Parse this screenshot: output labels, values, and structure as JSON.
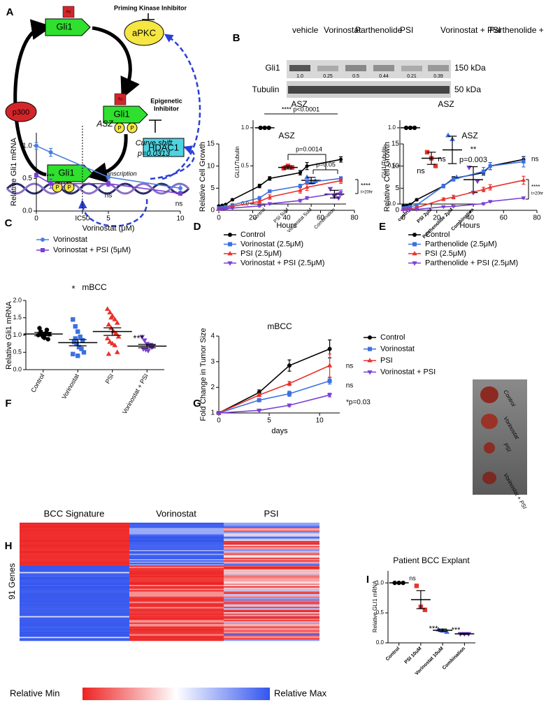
{
  "panels": [
    "A",
    "B",
    "C",
    "D",
    "E",
    "F",
    "G",
    "H",
    "I"
  ],
  "diagram": {
    "gli1": "Gli1",
    "ac": "Ac",
    "p": "P",
    "apkc": "aPKC",
    "priming": "Priming Kinase Inhibitor",
    "p300": "p300",
    "epigenetic": [
      "Epigenetic",
      "Inhibitor"
    ],
    "hdac1": "HDAC1",
    "transcription": "Transcription"
  },
  "blot": {
    "lanes": [
      "vehicle",
      "Vorinostat",
      "Parthenolide",
      "PSI",
      "Vorinostat + PSI",
      "Parthenolide + PSI"
    ],
    "rows": [
      "Gli1",
      "Tubulin"
    ],
    "sizes": [
      "150 kDa",
      "50 kDa"
    ],
    "quant": [
      "1.0",
      "0.25",
      "0.5",
      "0.44",
      "0.21",
      "0.39"
    ]
  },
  "heatmap": {
    "columns": [
      "BCC Signature",
      "Vorinostat",
      "PSI"
    ],
    "row_label": "91 Genes",
    "scale": [
      "Relative Min",
      "Relative Max"
    ]
  },
  "tumor_photo": {
    "labels": [
      "Control",
      "Vorinostat",
      "PSI",
      "Vorinostat + PSI"
    ]
  },
  "chart_data": [
    {
      "type": "dot",
      "title": "ASZ",
      "ylabel": "GLI1/Tubulin",
      "categories": [
        "control",
        "PSI 5uM",
        "Vorinostat 5uM",
        "Combination"
      ],
      "points": [
        [
          1,
          1,
          1
        ],
        [
          0.47,
          0.5,
          0.48
        ],
        [
          0.35,
          0.28,
          0.3
        ],
        [
          0.2,
          0.1,
          0.08
        ]
      ],
      "means": [
        1,
        0.48,
        0.31,
        0.13
      ],
      "errors": [
        0,
        0.02,
        0.04,
        0.05
      ],
      "colors": [
        "#000000",
        "#e8322c",
        "#3d6fe0",
        "#7b3fd6"
      ],
      "markers": [
        "circle",
        "square",
        "triangle",
        "triangle-down"
      ],
      "ylim": [
        0,
        1.1
      ],
      "yticks": [
        {
          "value": 0,
          "label": "0.0"
        },
        {
          "value": 0.5,
          "label": "0.5"
        },
        {
          "value": 1,
          "label": "1.0"
        }
      ],
      "annotations": [
        "**** p<0.0001",
        "p=0.0014",
        "p=0.05"
      ]
    },
    {
      "type": "dot",
      "title": "ASZ",
      "ylabel": "GLI1/Tubulin",
      "categories": [
        "control",
        "PSI 2μM",
        "Parthenolide 2μM",
        "Combination"
      ],
      "points": [
        [
          1,
          1,
          1
        ],
        [
          0.68,
          0.6,
          0.5
        ],
        [
          0.9,
          0.85,
          0.35
        ],
        [
          0.48,
          0.15,
          0.3
        ]
      ],
      "means": [
        1,
        0.6,
        0.71,
        0.32
      ],
      "errors": [
        0,
        0.08,
        0.18,
        0.17
      ],
      "colors": [
        "#000000",
        "#e8322c",
        "#3d6fe0",
        "#7b3fd6"
      ],
      "markers": [
        "circle",
        "square",
        "triangle",
        "triangle-down"
      ],
      "ylim": [
        0,
        1.1
      ],
      "yticks": [
        {
          "value": 0,
          "label": "0.0"
        },
        {
          "value": 0.5,
          "label": "0.5"
        },
        {
          "value": 1,
          "label": "1.0"
        }
      ],
      "annotations": [
        "ns",
        "ns",
        "**",
        "p=0.003"
      ]
    },
    {
      "type": "line",
      "title": "ASZ",
      "xlabel": "Vorinostat (μM)",
      "ylabel": "Relative Gli1 mRNA",
      "x": [
        0,
        1,
        5,
        10
      ],
      "xlim": [
        0,
        10
      ],
      "xticks": [
        0,
        {
          "value": 3.2,
          "label": "IC50"
        },
        5,
        10
      ],
      "ylim": [
        0,
        1.2
      ],
      "yticks": [
        {
          "value": 0,
          "label": "0.0"
        },
        {
          "value": 0.5,
          "label": "0.5"
        },
        {
          "value": 1,
          "label": "1.0"
        }
      ],
      "legend": "below",
      "series": [
        {
          "name": "Vorinostat",
          "color": "#4a7fe0",
          "marker": "circle",
          "values": [
            1.0,
            0.9,
            0.52,
            0.35
          ],
          "errors": [
            0.05,
            0.06,
            0.03,
            0.07
          ]
        },
        {
          "name": "Vorinostat + PSI (5μM)",
          "color": "#7b3fd6",
          "marker": "square",
          "values": [
            0.55,
            0.42,
            0.42,
            0.27
          ],
          "errors": [
            0.03,
            0.07,
            0.04,
            0.03
          ]
        }
      ],
      "annotations": [
        "****",
        "****",
        "ns",
        "ns",
        "Curve shift",
        "p=0.0313"
      ]
    },
    {
      "type": "line",
      "title": "ASZ",
      "xlabel": "Hours",
      "ylabel": "Relative Cell Growth",
      "x": [
        0,
        2,
        4,
        8,
        24,
        30,
        48,
        52,
        72
      ],
      "xlim": [
        0,
        80
      ],
      "xticks": [
        0,
        20,
        40,
        60,
        80
      ],
      "ylim": [
        0,
        15
      ],
      "yticks": [
        0,
        5,
        10,
        15
      ],
      "legend": "below",
      "series": [
        {
          "name": "Control",
          "color": "#000000",
          "marker": "circle",
          "values": [
            1,
            1.1,
            1.3,
            2.4,
            5.5,
            7.2,
            8.5,
            10,
            11.5
          ],
          "errors": [
            0.1,
            0.1,
            0.1,
            0.2,
            0.4,
            0.4,
            0.5,
            0.8,
            0.6
          ]
        },
        {
          "name": "Vorinostat (2.5μM)",
          "color": "#3d6fe0",
          "marker": "square",
          "values": [
            0.5,
            0.6,
            0.8,
            1.2,
            2.8,
            4.3,
            5.5,
            6.3,
            7.2
          ],
          "errors": [
            0.1,
            0.1,
            0.1,
            0.1,
            0.3,
            0.3,
            0.4,
            0.4,
            0.4
          ]
        },
        {
          "name": "PSI (2.5μM)",
          "color": "#e8322c",
          "marker": "triangle",
          "values": [
            0.3,
            0.4,
            0.5,
            0.9,
            2,
            3,
            4.5,
            5.2,
            6.7
          ],
          "errors": [
            0.1,
            0.1,
            0.1,
            0.1,
            0.3,
            0.5,
            0.6,
            0.7,
            0.6
          ]
        },
        {
          "name": "Vorinostat + PSI (2.5μM)",
          "color": "#7b3fd6",
          "marker": "triangle-down",
          "values": [
            0.2,
            0.3,
            0.3,
            0.5,
            1,
            1.5,
            2.2,
            2.8,
            4
          ],
          "errors": [
            0.05,
            0.05,
            0.05,
            0.1,
            0.2,
            0.2,
            0.3,
            0.3,
            0.6
          ]
        }
      ],
      "annotations": [
        "****",
        "t>20hr"
      ]
    },
    {
      "type": "line",
      "title": "ASZ",
      "xlabel": "Hours",
      "ylabel": "Relative Cell Growth",
      "x": [
        0,
        2,
        4,
        8,
        24,
        30,
        48,
        52,
        72
      ],
      "xlim": [
        0,
        80
      ],
      "xticks": [
        0,
        20,
        40,
        60,
        80
      ],
      "ylim": [
        0,
        15
      ],
      "yticks": [
        0,
        5,
        10,
        15
      ],
      "legend": "below",
      "series": [
        {
          "name": "Control",
          "color": "#000000",
          "marker": "circle",
          "values": [
            1,
            1.1,
            1.3,
            2.4,
            5.5,
            7.2,
            8.5,
            10,
            11.5
          ],
          "errors": [
            0.1,
            0.1,
            0.1,
            0.2,
            0.4,
            0.4,
            0.5,
            0.8,
            0.6
          ]
        },
        {
          "name": "Parthenolide (2.5μM)",
          "color": "#3d6fe0",
          "marker": "square",
          "values": [
            0.5,
            0.6,
            0.8,
            1.2,
            5.5,
            7,
            8.8,
            10,
            11
          ],
          "errors": [
            0.1,
            0.1,
            0.1,
            0.1,
            0.4,
            0.4,
            0.9,
            0.8,
            1.2
          ]
        },
        {
          "name": "PSI (2.5μM)",
          "color": "#e8322c",
          "marker": "triangle",
          "values": [
            0.2,
            0.3,
            0.4,
            0.6,
            2.5,
            3,
            4.7,
            5.2,
            6.8
          ],
          "errors": [
            0.05,
            0.1,
            0.1,
            0.1,
            0.3,
            0.4,
            0.5,
            0.6,
            0.9
          ]
        },
        {
          "name": "Parthenolide + PSI (2.5μM)",
          "color": "#7b3fd6",
          "marker": "triangle-down",
          "values": [
            0.1,
            0.1,
            0.15,
            0.2,
            0.8,
            0.9,
            1.5,
            2,
            2.8
          ],
          "errors": [
            0.05,
            0.05,
            0.05,
            0.05,
            0.1,
            0.1,
            0.2,
            0.2,
            0.2
          ]
        }
      ],
      "annotations": [
        "ns",
        "****",
        "t>20hr"
      ]
    },
    {
      "type": "dot",
      "title": "mBCC",
      "ylabel": "Relative Gli1 mRNA",
      "categories": [
        "Control",
        "Vorinostat",
        "PSI",
        "Vorinostat + PSI"
      ],
      "points": [
        [
          1.0,
          1.1,
          0.95,
          1.05,
          0.88,
          1.2,
          1.0,
          0.92,
          1.15,
          1.02
        ],
        [
          1.45,
          1.25,
          1.1,
          0.95,
          0.85,
          0.8,
          0.75,
          0.65,
          0.6,
          0.5,
          0.45,
          0.9,
          0.4
        ],
        [
          1.75,
          1.65,
          1.55,
          1.45,
          1.35,
          1.3,
          1.2,
          1.1,
          1.05,
          0.95,
          0.9,
          0.8,
          0.75,
          0.7,
          0.5,
          0.45,
          1.5
        ],
        [
          0.95,
          0.85,
          0.75,
          0.7,
          0.65,
          0.6,
          0.58,
          0.55,
          0.72,
          0.68
        ]
      ],
      "means": [
        1.03,
        0.78,
        1.1,
        0.68
      ],
      "errors": [
        0.05,
        0.09,
        0.11,
        0.05
      ],
      "colors": [
        "#000000",
        "#3d6fe0",
        "#e8322c",
        "#7b3fd6"
      ],
      "markers": [
        "circle",
        "square",
        "triangle",
        "triangle-down"
      ],
      "ylim": [
        0,
        2
      ],
      "yticks": [
        {
          "value": 0,
          "label": "0.0"
        },
        {
          "value": 0.5,
          "label": "0.5"
        },
        {
          "value": 1,
          "label": "1.0"
        },
        {
          "value": 1.5,
          "label": "1.5"
        },
        {
          "value": 2,
          "label": "2.0"
        }
      ],
      "annotations": [
        "*",
        "***"
      ]
    },
    {
      "type": "line",
      "title": "mBCC",
      "xlabel": "days",
      "ylabel": "Fold Change in Tumor Size",
      "x": [
        0,
        4,
        7,
        11
      ],
      "xlim": [
        0,
        12
      ],
      "xticks": [
        0,
        5,
        10
      ],
      "ylim": [
        1,
        4
      ],
      "yticks": [
        1,
        2,
        3,
        4
      ],
      "legend": "right",
      "series": [
        {
          "name": "Control",
          "color": "#000000",
          "marker": "circle",
          "values": [
            1,
            1.8,
            2.85,
            3.5
          ],
          "errors": [
            0,
            0.1,
            0.22,
            0.35
          ]
        },
        {
          "name": "Vorinostat",
          "color": "#3d6fe0",
          "marker": "square",
          "values": [
            1,
            1.5,
            1.75,
            2.25
          ],
          "errors": [
            0,
            0.05,
            0.1,
            0.12
          ]
        },
        {
          "name": "PSI",
          "color": "#e8322c",
          "marker": "triangle",
          "values": [
            1,
            1.7,
            2.15,
            2.85
          ],
          "errors": [
            0,
            0.06,
            0.08,
            0.45
          ]
        },
        {
          "name": "Vorinostat + PSI",
          "color": "#7b3fd6",
          "marker": "triangle-down",
          "values": [
            1,
            1.1,
            1.3,
            1.7
          ],
          "errors": [
            0,
            0.03,
            0.05,
            0.07
          ]
        }
      ],
      "annotations": [
        "ns",
        "ns",
        "*p=0.03"
      ]
    },
    {
      "type": "dot",
      "title": "Patient BCC Explant",
      "ylabel": "Relative GLI1 mRNA",
      "categories": [
        "Control",
        "PSI 10uM",
        "Vorinostat 10uM",
        "Combination"
      ],
      "points": [
        [
          1,
          1,
          1
        ],
        [
          0.95,
          0.6,
          0.55
        ],
        [
          0.22,
          0.2,
          0.18
        ],
        [
          0.15,
          0.15,
          0.15
        ]
      ],
      "means": [
        1,
        0.72,
        0.21,
        0.15
      ],
      "errors": [
        0,
        0.15,
        0.02,
        0.01
      ],
      "colors": [
        "#000000",
        "#e8322c",
        "#3d6fe0",
        "#7b3fd6"
      ],
      "markers": [
        "circle",
        "square",
        "triangle",
        "triangle-down"
      ],
      "ylim": [
        0,
        1.2
      ],
      "yticks": [
        {
          "value": 0,
          "label": "0.0"
        },
        {
          "value": 0.5,
          "label": "0.5"
        },
        {
          "value": 1,
          "label": "1.0"
        }
      ],
      "annotations": [
        "ns",
        "***",
        "***"
      ]
    }
  ]
}
